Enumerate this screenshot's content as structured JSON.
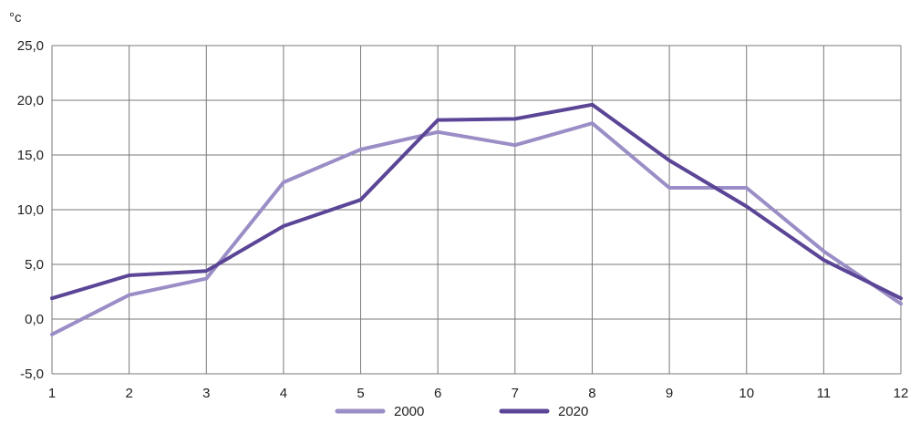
{
  "chart_data": {
    "type": "line",
    "y_unit": "°c",
    "categories": [
      "1",
      "2",
      "3",
      "4",
      "5",
      "6",
      "7",
      "8",
      "9",
      "10",
      "11",
      "12"
    ],
    "x": [
      1,
      2,
      3,
      4,
      5,
      6,
      7,
      8,
      9,
      10,
      11,
      12
    ],
    "ylim": [
      -5,
      25
    ],
    "y_ticks": [
      -5,
      0,
      5,
      10,
      15,
      20,
      25
    ],
    "y_tick_labels": [
      "-5,0",
      "0,0",
      "5,0",
      "10,0",
      "15,0",
      "20,0",
      "25,0"
    ],
    "grid": true,
    "legend_position": "bottom-center",
    "series": [
      {
        "name": "2000",
        "color": "#9b8dc6",
        "values": [
          -1.4,
          2.2,
          3.7,
          12.5,
          15.5,
          17.1,
          15.9,
          17.9,
          12.0,
          12.0,
          6.2,
          1.4
        ]
      },
      {
        "name": "2020",
        "color": "#5b4596",
        "values": [
          1.9,
          4.0,
          4.4,
          8.5,
          10.9,
          18.2,
          18.3,
          19.6,
          14.5,
          10.3,
          5.4,
          1.9
        ]
      }
    ]
  }
}
